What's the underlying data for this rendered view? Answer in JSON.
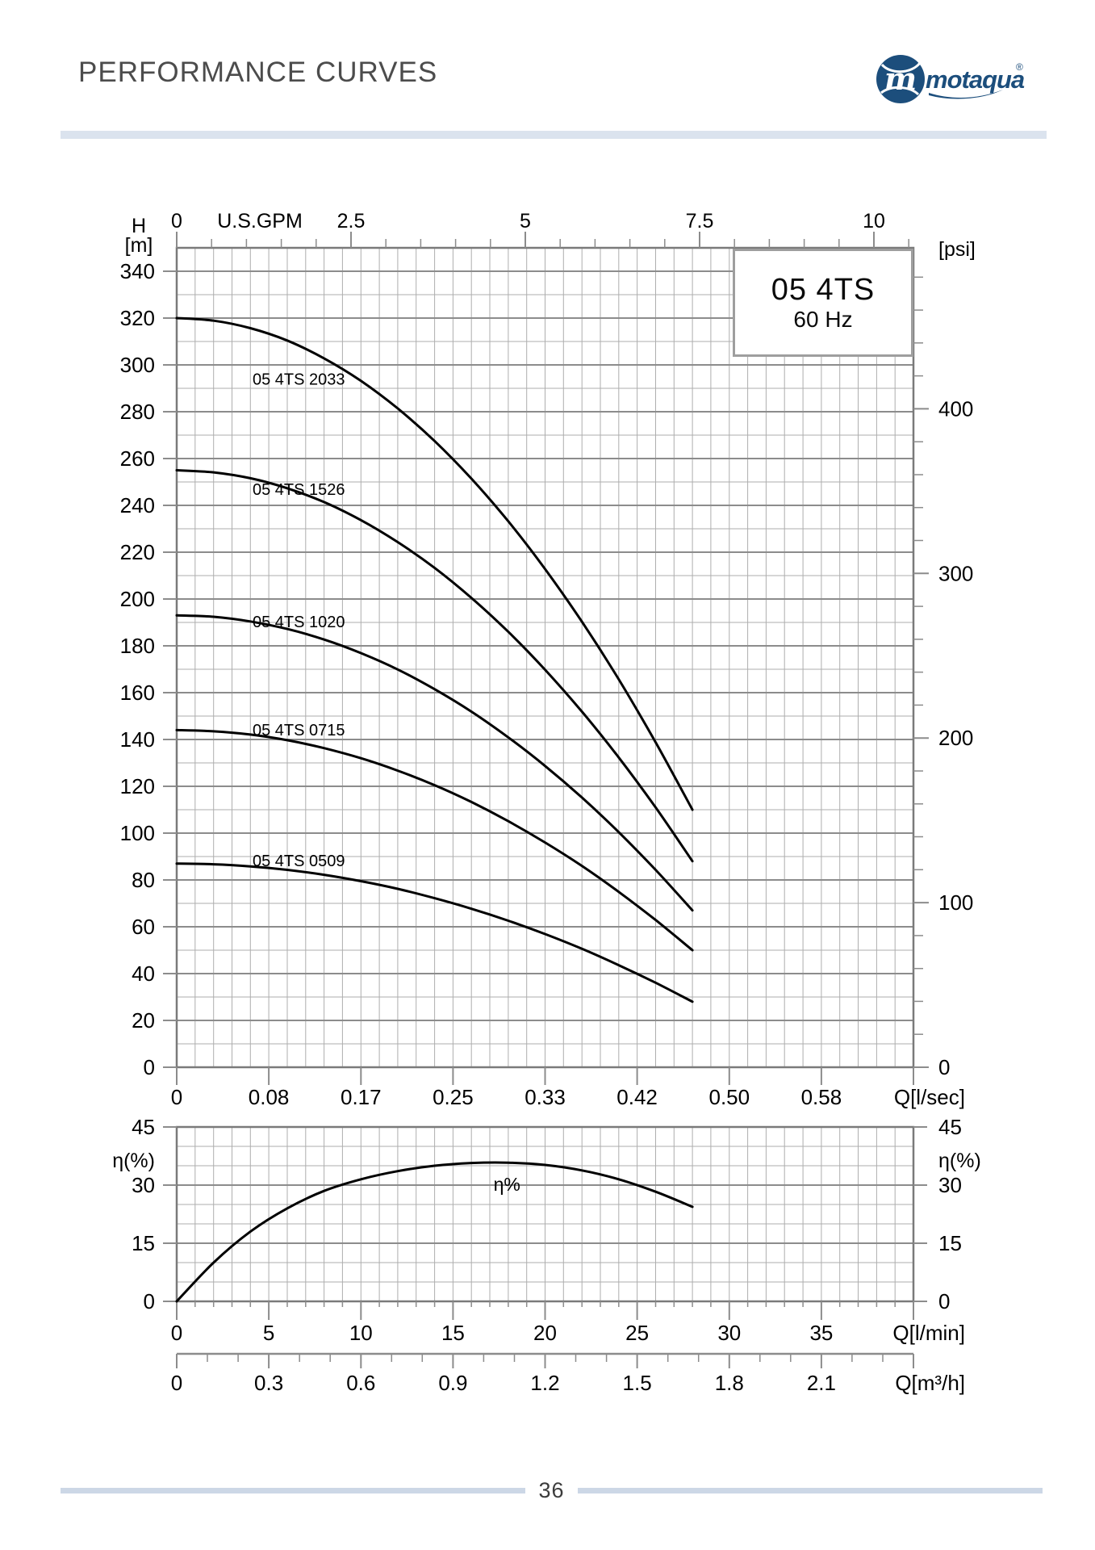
{
  "header": {
    "title": "PERFORMANCE CURVES",
    "logo": {
      "brand": "motaqua",
      "monogram": "m",
      "registered": "®"
    }
  },
  "model_box": {
    "model": "05 4TS",
    "frequency": "60 Hz"
  },
  "footer": {
    "page_number": "36"
  },
  "colors": {
    "brand_navy": "#1c4e7c",
    "title_gray": "#4c4c4c",
    "accent_bar": "#dbe3ee",
    "footer_bar": "#ccd7e6",
    "grid_minor": "#aeaeae",
    "grid_major": "#8c8c8c",
    "chart_border": "#7a7a7a",
    "curve_color": "#000000",
    "label_color": "#000000"
  },
  "chart_data": [
    {
      "type": "line",
      "title": "Head vs flow performance curves",
      "x_range_lmin": [
        0,
        40
      ],
      "y_range_m": [
        0,
        350
      ],
      "grid": "on",
      "top_axis": {
        "label": "U.S.GPM",
        "tick_labels": [
          "0",
          "2.5",
          "5",
          "7.5",
          "10"
        ],
        "tick_values_gpm": [
          0,
          2.5,
          5,
          7.5,
          10
        ],
        "minor_step_gpm": 0.5,
        "lmin_per_gpm": 3.78541
      },
      "bottom_axis": {
        "label": "Q[l/sec]",
        "tick_labels": [
          "0",
          "0.08",
          "0.17",
          "0.25",
          "0.33",
          "0.42",
          "0.50",
          "0.58"
        ],
        "tick_positions_lmin": [
          0,
          5,
          10,
          15,
          20,
          25,
          30,
          35
        ]
      },
      "left_axis": {
        "label_line1": "H",
        "label_line2": "[m]",
        "tick_values": [
          340,
          320,
          300,
          280,
          260,
          240,
          220,
          200,
          180,
          160,
          140,
          120,
          100,
          80,
          60,
          40,
          20,
          0
        ],
        "major_step": 20,
        "minor_step": 10
      },
      "right_axis": {
        "label": "[psi]",
        "tick_values": [
          400,
          300,
          200,
          100,
          0
        ],
        "minor_step_psi": 20,
        "max_minor_psi": 480,
        "m_per_psi": 0.7031
      },
      "series": [
        {
          "name": "05 4TS 2033",
          "label_anchor": [
            4.12,
            291.5
          ],
          "points": [
            [
              0,
              320
            ],
            [
              2,
              318.9
            ],
            [
              4,
              315.7
            ],
            [
              6,
              310.4
            ],
            [
              8,
              302.8
            ],
            [
              10,
              293.2
            ],
            [
              12,
              281.4
            ],
            [
              14,
              267.5
            ],
            [
              16,
              251.4
            ],
            [
              18,
              233.2
            ],
            [
              20,
              212.8
            ],
            [
              22,
              190.3
            ],
            [
              24,
              165.7
            ],
            [
              26,
              138.8
            ],
            [
              28,
              110
            ]
          ]
        },
        {
          "name": "05 4TS 1526",
          "label_anchor": [
            4.12,
            244.5
          ],
          "points": [
            [
              0,
              255
            ],
            [
              2,
              254.1
            ],
            [
              4,
              251.6
            ],
            [
              6,
              247.3
            ],
            [
              8,
              241.4
            ],
            [
              10,
              233.7
            ],
            [
              12,
              224.3
            ],
            [
              14,
              213.3
            ],
            [
              16,
              200.5
            ],
            [
              18,
              186.0
            ],
            [
              20,
              169.8
            ],
            [
              22,
              151.9
            ],
            [
              24,
              132.3
            ],
            [
              26,
              111.0
            ],
            [
              28,
              88
            ]
          ]
        },
        {
          "name": "05 4TS 1020",
          "label_anchor": [
            4.12,
            187.9
          ],
          "points": [
            [
              0,
              193
            ],
            [
              2,
              192.4
            ],
            [
              4,
              190.4
            ],
            [
              6,
              187.2
            ],
            [
              8,
              182.7
            ],
            [
              10,
              176.9
            ],
            [
              12,
              169.9
            ],
            [
              14,
              161.5
            ],
            [
              16,
              151.9
            ],
            [
              18,
              140.9
            ],
            [
              20,
              128.7
            ],
            [
              22,
              115.2
            ],
            [
              24,
              100.4
            ],
            [
              26,
              84.3
            ],
            [
              28,
              67
            ]
          ]
        },
        {
          "name": "05 4TS 0715",
          "label_anchor": [
            4.12,
            141.7
          ],
          "points": [
            [
              0,
              144
            ],
            [
              2,
              143.5
            ],
            [
              4,
              142.1
            ],
            [
              6,
              139.7
            ],
            [
              8,
              136.3
            ],
            [
              10,
              132.0
            ],
            [
              12,
              126.7
            ],
            [
              14,
              120.5
            ],
            [
              16,
              113.3
            ],
            [
              18,
              105.1
            ],
            [
              20,
              96.0
            ],
            [
              22,
              86.0
            ],
            [
              24,
              74.9
            ],
            [
              26,
              62.9
            ],
            [
              28,
              50
            ]
          ]
        },
        {
          "name": "05 4TS 0509",
          "label_anchor": [
            4.12,
            85.9
          ],
          "points": [
            [
              0,
              87
            ],
            [
              2,
              86.7
            ],
            [
              4,
              85.8
            ],
            [
              6,
              84.3
            ],
            [
              8,
              82.2
            ],
            [
              10,
              79.5
            ],
            [
              12,
              76.2
            ],
            [
              14,
              72.2
            ],
            [
              16,
              67.7
            ],
            [
              18,
              62.6
            ],
            [
              20,
              56.9
            ],
            [
              22,
              50.6
            ],
            [
              24,
              43.6
            ],
            [
              26,
              36.1
            ],
            [
              28,
              28
            ]
          ]
        }
      ]
    },
    {
      "type": "line",
      "title": "Efficiency curve",
      "x_range_lmin": [
        0,
        40
      ],
      "y_range_pct": [
        0,
        45
      ],
      "grid": "on",
      "left_axis": {
        "label": "η(%)",
        "tick_values": [
          45,
          30,
          15,
          0
        ],
        "major_step": 15,
        "minor_step": 5
      },
      "right_axis": {
        "label": "η(%)",
        "tick_values": [
          45,
          30,
          15,
          0
        ]
      },
      "bottom_axis_lmin": {
        "label": "Q[l/min]",
        "tick_labels": [
          "0",
          "5",
          "10",
          "15",
          "20",
          "25",
          "30",
          "35"
        ],
        "tick_values": [
          0,
          5,
          10,
          15,
          20,
          25,
          30,
          35
        ],
        "minor_step": 1
      },
      "bottom_axis_m3h": {
        "label": "Q[m³/h]",
        "tick_labels": [
          "0",
          "0.3",
          "0.6",
          "0.9",
          "1.2",
          "1.5",
          "1.8",
          "2.1"
        ],
        "tick_values": [
          0,
          0.3,
          0.6,
          0.9,
          1.2,
          1.5,
          1.8,
          2.1
        ],
        "minor_step": 0.1,
        "lmin_per_m3h": 16.6667
      },
      "series": [
        {
          "name": "η%",
          "label_anchor": [
            17.2,
            28.5
          ],
          "points": [
            [
              0,
              0
            ],
            [
              2,
              10
            ],
            [
              4,
              18
            ],
            [
              6,
              24
            ],
            [
              8,
              28.5
            ],
            [
              10,
              31.5
            ],
            [
              12,
              33.6
            ],
            [
              14,
              35.0
            ],
            [
              16,
              35.7
            ],
            [
              18,
              35.8
            ],
            [
              20,
              35.2
            ],
            [
              22,
              33.8
            ],
            [
              24,
              31.5
            ],
            [
              26,
              28.3
            ],
            [
              28,
              24.4
            ]
          ]
        }
      ]
    }
  ]
}
